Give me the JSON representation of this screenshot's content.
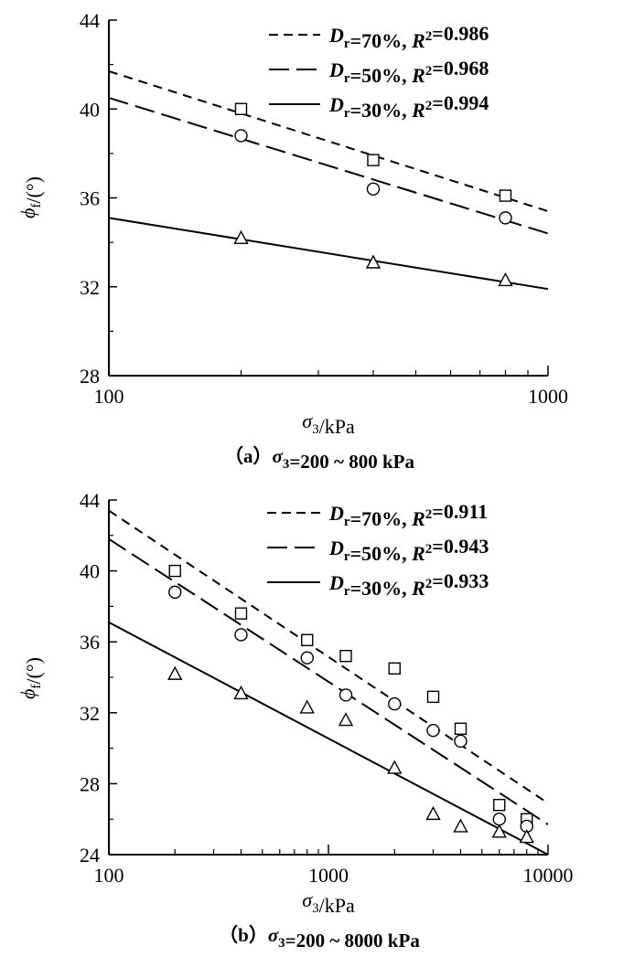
{
  "chart_data": [
    {
      "type": "line",
      "panel_id": "a",
      "caption": "（a）σ3=200 ~ 800 kPa",
      "xlabel": "σ3/kPa",
      "ylabel": "ϕf/(°)",
      "x_scale": "log",
      "xlim": [
        100,
        1000
      ],
      "ylim": [
        28,
        44
      ],
      "x_ticks": [
        100,
        1000
      ],
      "x_tick_labels": [
        "100",
        "1000"
      ],
      "y_ticks": [
        28,
        32,
        36,
        40,
        44
      ],
      "y_tick_labels": [
        "28",
        "32",
        "36",
        "40",
        "44"
      ],
      "legend_position": "top-right",
      "series": [
        {
          "name": "Dr=70%, R2=0.986",
          "line_style": "short-dash",
          "marker": "square",
          "points": [
            {
              "x": 200,
              "y": 40.0
            },
            {
              "x": 400,
              "y": 37.7
            },
            {
              "x": 800,
              "y": 36.1
            }
          ],
          "fit": [
            {
              "x": 100,
              "y": 41.7
            },
            {
              "x": 1000,
              "y": 35.4
            }
          ]
        },
        {
          "name": "Dr=50%, R2=0.968",
          "line_style": "long-dash",
          "marker": "circle",
          "points": [
            {
              "x": 200,
              "y": 38.8
            },
            {
              "x": 400,
              "y": 36.4
            },
            {
              "x": 800,
              "y": 35.1
            }
          ],
          "fit": [
            {
              "x": 100,
              "y": 40.5
            },
            {
              "x": 1000,
              "y": 34.4
            }
          ]
        },
        {
          "name": "Dr=30%, R2=0.994",
          "line_style": "solid",
          "marker": "triangle",
          "points": [
            {
              "x": 200,
              "y": 34.2
            },
            {
              "x": 400,
              "y": 33.1
            },
            {
              "x": 800,
              "y": 32.3
            }
          ],
          "fit": [
            {
              "x": 100,
              "y": 35.1
            },
            {
              "x": 1000,
              "y": 31.9
            }
          ]
        }
      ]
    },
    {
      "type": "line",
      "panel_id": "b",
      "caption": "（b）σ3=200 ~ 8000 kPa",
      "xlabel": "σ3/kPa",
      "ylabel": "ϕf/(°)",
      "x_scale": "log",
      "xlim": [
        100,
        10000
      ],
      "ylim": [
        24,
        44
      ],
      "x_ticks": [
        100,
        1000,
        10000
      ],
      "x_tick_labels": [
        "100",
        "1000",
        "10000"
      ],
      "y_ticks": [
        24,
        28,
        32,
        36,
        40,
        44
      ],
      "y_tick_labels": [
        "24",
        "28",
        "32",
        "36",
        "40",
        "44"
      ],
      "legend_position": "top-right",
      "series": [
        {
          "name": "Dr=70%, R2=0.911",
          "line_style": "short-dash",
          "marker": "square",
          "points": [
            {
              "x": 200,
              "y": 40.0
            },
            {
              "x": 400,
              "y": 37.6
            },
            {
              "x": 800,
              "y": 36.1
            },
            {
              "x": 1200,
              "y": 35.2
            },
            {
              "x": 2000,
              "y": 34.5
            },
            {
              "x": 3000,
              "y": 32.9
            },
            {
              "x": 4000,
              "y": 31.1
            },
            {
              "x": 6000,
              "y": 26.8
            },
            {
              "x": 8000,
              "y": 26.0
            }
          ],
          "fit": [
            {
              "x": 100,
              "y": 43.4
            },
            {
              "x": 10000,
              "y": 26.9
            }
          ]
        },
        {
          "name": "Dr=50%, R2=0.943",
          "line_style": "long-dash",
          "marker": "circle",
          "points": [
            {
              "x": 200,
              "y": 38.8
            },
            {
              "x": 400,
              "y": 36.4
            },
            {
              "x": 800,
              "y": 35.1
            },
            {
              "x": 1200,
              "y": 33.0
            },
            {
              "x": 2000,
              "y": 32.5
            },
            {
              "x": 3000,
              "y": 31.0
            },
            {
              "x": 4000,
              "y": 30.4
            },
            {
              "x": 6000,
              "y": 26.0
            },
            {
              "x": 8000,
              "y": 25.6
            }
          ],
          "fit": [
            {
              "x": 100,
              "y": 41.8
            },
            {
              "x": 10000,
              "y": 25.7
            }
          ]
        },
        {
          "name": "Dr=30%, R2=0.933",
          "line_style": "solid",
          "marker": "triangle",
          "points": [
            {
              "x": 200,
              "y": 34.2
            },
            {
              "x": 400,
              "y": 33.1
            },
            {
              "x": 800,
              "y": 32.3
            },
            {
              "x": 1200,
              "y": 31.6
            },
            {
              "x": 2000,
              "y": 28.9
            },
            {
              "x": 3000,
              "y": 26.3
            },
            {
              "x": 4000,
              "y": 25.6
            },
            {
              "x": 6000,
              "y": 25.3
            },
            {
              "x": 8000,
              "y": 25.0
            }
          ],
          "fit": [
            {
              "x": 100,
              "y": 37.1
            },
            {
              "x": 10000,
              "y": 24.0
            }
          ]
        }
      ]
    }
  ]
}
